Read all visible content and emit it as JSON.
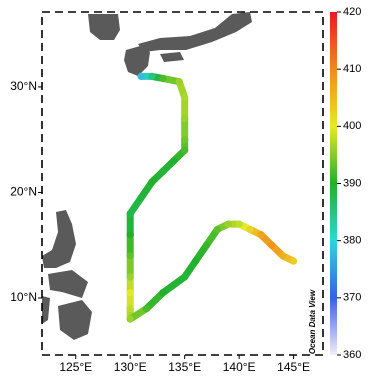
{
  "chart_data": {
    "type": "track",
    "credit": "Ocean Data View",
    "x": [
      131,
      132,
      133,
      134.5,
      135,
      135,
      135,
      135,
      134,
      133,
      132,
      131,
      130,
      130,
      130,
      130,
      130,
      130,
      130,
      131.5,
      133,
      135,
      136,
      137,
      138,
      139,
      140,
      141,
      142,
      143,
      144,
      145
    ],
    "y": [
      31,
      31,
      30.8,
      30.5,
      29,
      27,
      25,
      24,
      23,
      22,
      21,
      19.5,
      18,
      16,
      14,
      12,
      10.5,
      9,
      8,
      9,
      10.5,
      12,
      13.5,
      15,
      16.5,
      17,
      17,
      16.5,
      16,
      15,
      14,
      13.5
    ],
    "values": [
      378,
      385,
      392,
      396,
      397,
      396,
      394,
      392,
      390,
      389,
      390,
      389,
      388,
      390,
      393,
      396,
      400,
      398,
      396,
      392,
      390,
      389,
      390,
      391,
      393,
      396,
      398,
      402,
      407,
      409,
      406,
      403
    ],
    "xlim": [
      121.9,
      147.7
    ],
    "ylim": [
      4.6,
      37.1
    ],
    "xticks": [
      {
        "value": 125,
        "label": "125°E"
      },
      {
        "value": 130,
        "label": "130°E"
      },
      {
        "value": 135,
        "label": "135°E"
      },
      {
        "value": 140,
        "label": "140°E"
      },
      {
        "value": 145,
        "label": "145°E"
      }
    ],
    "yticks": [
      {
        "value": 10,
        "label": "10°N"
      },
      {
        "value": 20,
        "label": "20°N"
      },
      {
        "value": 30,
        "label": "30°N"
      }
    ],
    "clim": [
      360,
      420
    ],
    "cticks": [
      360,
      370,
      380,
      390,
      400,
      410,
      420
    ],
    "colormap": [
      "#f2eefa",
      "#3a5ee8",
      "#2ed6d6",
      "#22b02a",
      "#e8e82a",
      "#f08a1a",
      "#e8182a"
    ]
  }
}
